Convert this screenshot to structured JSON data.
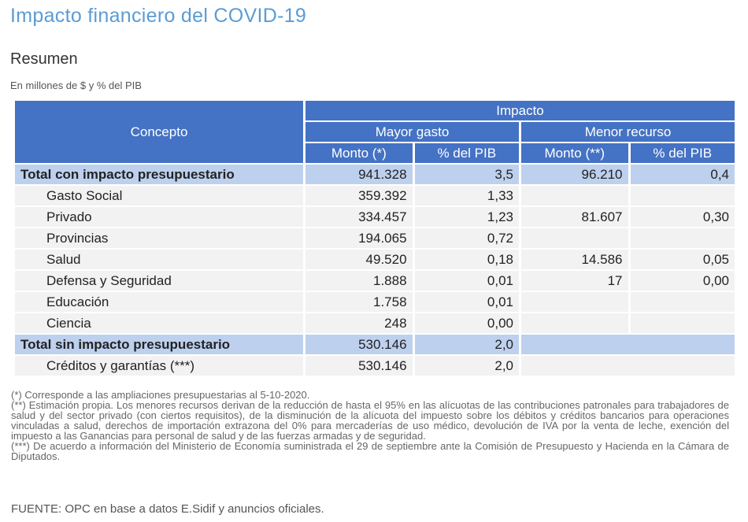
{
  "header": {
    "title": "Impacto financiero del COVID-19",
    "subtitle": "Resumen",
    "units": "En millones de $ y % del PIB"
  },
  "table": {
    "col_concept": "Concepto",
    "col_impacto": "Impacto",
    "col_mayor_gasto": "Mayor gasto",
    "col_menor_recurso": "Menor recurso",
    "col_monto_1": "Monto (*)",
    "col_pib_1": "% del PIB",
    "col_monto_2": "Monto (**)",
    "col_pib_2": "% del PIB",
    "rows": [
      {
        "label": "Total con impacto presupuestario",
        "monto": "941.328",
        "pib": "3,5",
        "monto2": "96.210",
        "pib2": "0,4"
      },
      {
        "label": "Gasto Social",
        "monto": "359.392",
        "pib": "1,33",
        "monto2": "",
        "pib2": ""
      },
      {
        "label": "Privado",
        "monto": "334.457",
        "pib": "1,23",
        "monto2": "81.607",
        "pib2": "0,30"
      },
      {
        "label": "Provincias",
        "monto": "194.065",
        "pib": "0,72",
        "monto2": "",
        "pib2": ""
      },
      {
        "label": "Salud",
        "monto": "49.520",
        "pib": "0,18",
        "monto2": "14.586",
        "pib2": "0,05"
      },
      {
        "label": "Defensa y Seguridad",
        "monto": "1.888",
        "pib": "0,01",
        "monto2": "17",
        "pib2": "0,00"
      },
      {
        "label": "Educación",
        "monto": "1.758",
        "pib": "0,01",
        "monto2": "",
        "pib2": ""
      },
      {
        "label": "Ciencia",
        "monto": "248",
        "pib": "0,00",
        "monto2": "",
        "pib2": ""
      },
      {
        "label": "Total sin impacto presupuestario",
        "monto": "530.146",
        "pib": "2,0"
      },
      {
        "label": "Créditos y garantías (***)",
        "monto": "530.146",
        "pib": "2,0"
      }
    ]
  },
  "notes": {
    "note1": "(*) Corresponde a las ampliaciones presupuestarias al 5-10-2020.",
    "note2": "(**) Estimación propia. Los menores recursos derivan de la reducción de hasta el 95% en las alícuotas de las contribuciones patronales para trabajadores de salud y del sector privado (con ciertos requisitos), de la disminución de la alícuota del impuesto sobre los débitos y créditos bancarios para operaciones vinculadas a salud, derechos de importación extrazona del 0% para mercaderías de uso médico, devolución de IVA por la venta de leche, exención del impuesto a las Ganancias para personal de salud y de las fuerzas armadas y de seguridad.",
    "note3": "(***) De acuerdo a información del Ministerio de Economía suministrada el 29 de septiembre ante la Comisión de Presupuesto y Hacienda en la Cámara de Diputados."
  },
  "source": "FUENTE: OPC en base a datos E.Sidif y anuncios oficiales.",
  "colors": {
    "title": "#5b9bd5",
    "header_bg": "#4472c4",
    "total_bg": "#bdd0ee",
    "row_bg": "#f2f2f2"
  }
}
